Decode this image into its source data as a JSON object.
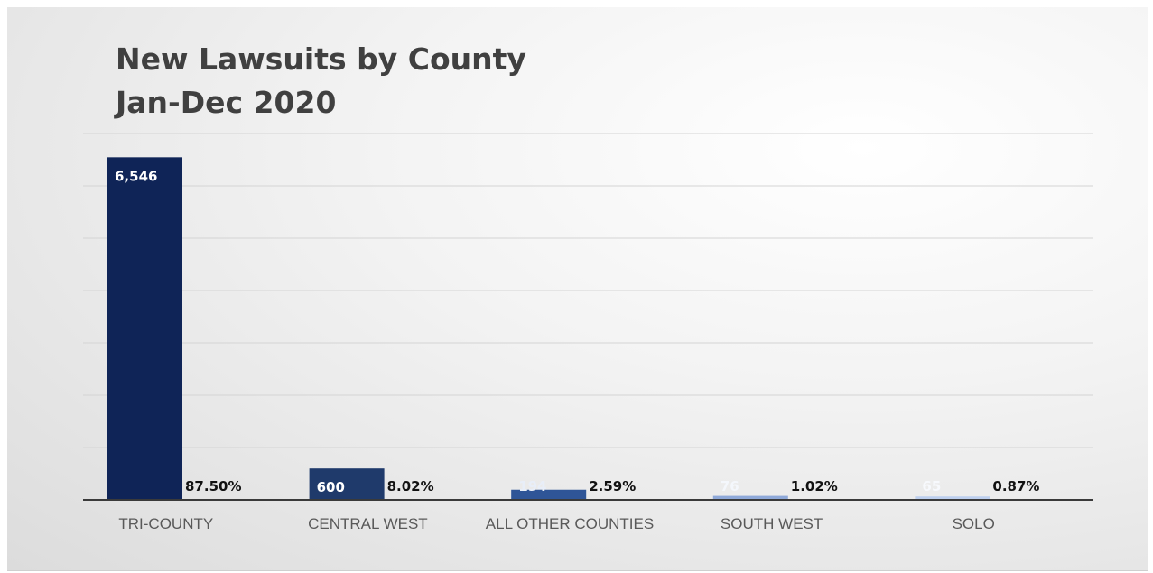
{
  "chart_data": {
    "type": "bar",
    "title": "New Lawsuits by County",
    "subtitle": "Jan-Dec 2020",
    "categories": [
      "TRI-COUNTY",
      "CENTRAL WEST",
      "ALL OTHER COUNTIES",
      "SOUTH WEST",
      "SOLO"
    ],
    "series": [
      {
        "values": [
          6546,
          600,
          194,
          76,
          65
        ]
      }
    ],
    "value_labels": [
      "6,546",
      "600",
      "194",
      "76",
      "65"
    ],
    "percent_labels": [
      "87.50%",
      "8.02%",
      "2.59%",
      "1.02%",
      "0.87%"
    ],
    "bar_colors": [
      "#0f2457",
      "#1f3a6b",
      "#2f5597",
      "#8fa9d9",
      "#bdcfee"
    ],
    "value_label_colors": [
      "#ffffff",
      "#ffffff",
      "#e8eef8",
      "#f4f7fc",
      "#f7f9fd"
    ],
    "ylim": [
      0,
      7000
    ],
    "grid": true,
    "xlabel": "",
    "ylabel": ""
  }
}
